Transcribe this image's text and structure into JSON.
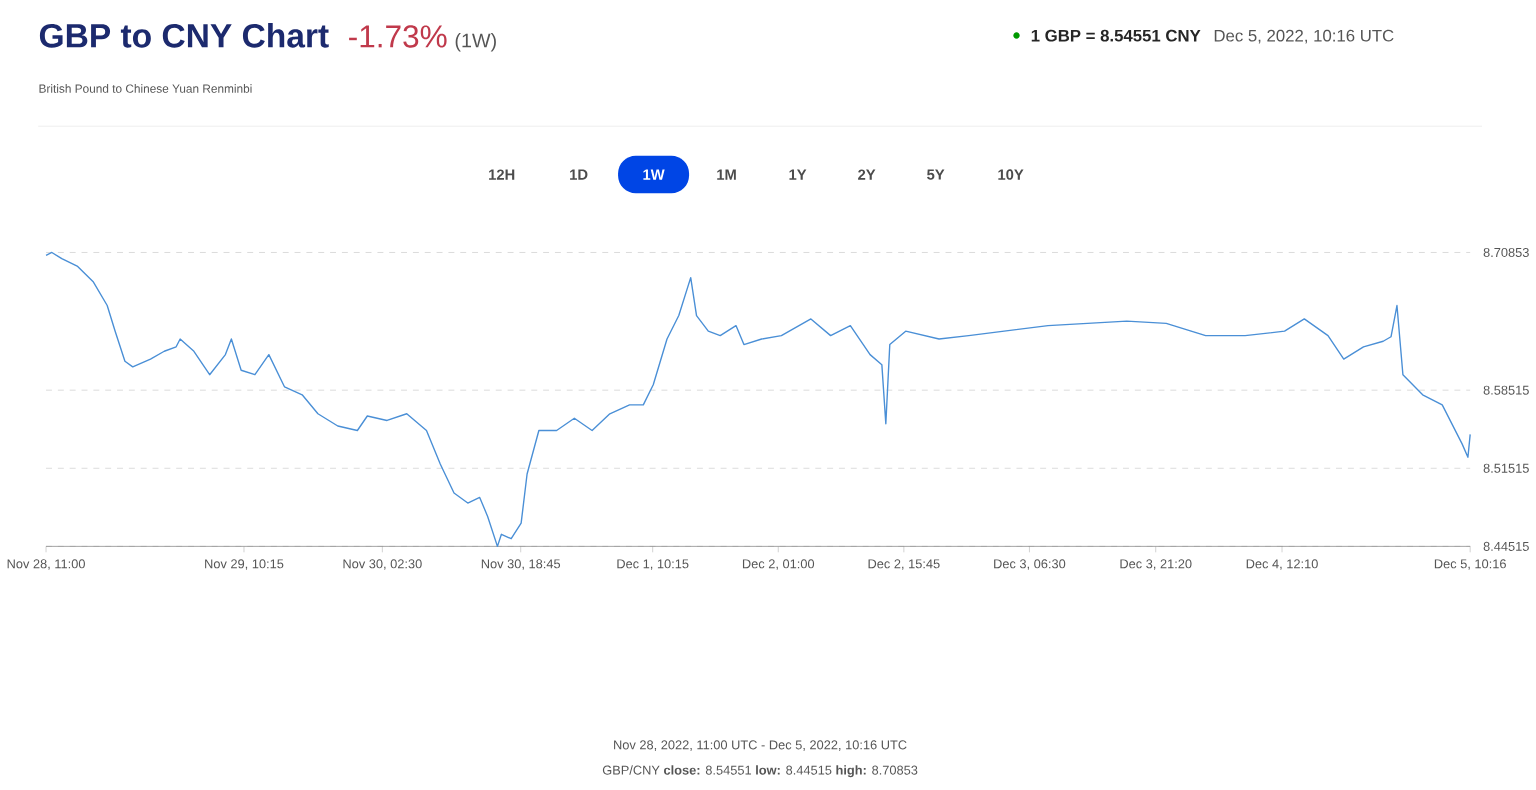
{
  "chart_data": {
    "type": "line",
    "title": "GBP to CNY Chart",
    "subtitle": "British Pound to Chinese Yuan Renminbi",
    "annotations": [
      "-1.73%",
      "(1W)",
      "1 GBP = 8.54551 CNY",
      "Dec 5, 2022, 10:16 UTC",
      "12H",
      "1D",
      "1W",
      "1M",
      "1Y",
      "2Y",
      "5Y",
      "10Y",
      "Nov 28, 2022, 11:00 UTC - Dec 5, 2022, 10:16 UTC",
      "GBP/CNY **close:** 8.54551 **low:** 8.44515 **high:** 8.70853"
    ],
    "x": [
      "2022-11-28T11:00",
      "2022-11-28T11:41",
      "2022-11-28T12:51",
      "2022-11-28T14:43",
      "2022-11-28T16:34",
      "2022-11-28T18:11",
      "2022-11-28T19:07",
      "2022-11-28T20:16",
      "2022-11-28T21:11",
      "2022-11-28T23:16",
      "2022-11-29T00:53",
      "2022-11-29T02:17",
      "2022-11-29T02:45",
      "2022-11-29T04:22",
      "2022-11-29T06:13",
      "2022-11-29T08:04",
      "2022-11-29T08:46",
      "2022-11-29T09:55",
      "2022-11-29T11:32",
      "2022-11-29T13:10",
      "2022-11-29T15:01",
      "2022-11-29T17:05",
      "2022-11-29T18:56",
      "2022-11-29T21:16",
      "2022-11-29T23:34",
      "2022-11-30T00:44",
      "2022-11-30T03:03",
      "2022-11-30T05:22",
      "2022-11-30T07:41",
      "2022-11-30T09:18",
      "2022-11-30T10:55",
      "2022-11-30T12:32",
      "2022-11-30T13:56",
      "2022-11-30T14:52",
      "2022-11-30T16:01",
      "2022-11-30T16:29",
      "2022-11-30T17:38",
      "2022-11-30T18:48",
      "2022-11-30T19:30",
      "2022-11-30T20:53",
      "2022-11-30T22:58",
      "2022-12-01T01:03",
      "2022-12-01T03:08",
      "2022-12-01T05:13",
      "2022-12-01T07:32",
      "2022-12-01T09:09",
      "2022-12-01T10:19",
      "2022-12-01T11:56",
      "2022-12-01T13:19",
      "2022-12-01T14:43",
      "2022-12-01T15:24",
      "2022-12-01T16:47",
      "2022-12-01T18:11",
      "2022-12-01T20:02",
      "2022-12-01T20:58",
      "2022-12-01T23:03",
      "2022-12-02T01:22",
      "2022-12-02T04:50",
      "2022-12-02T07:09",
      "2022-12-02T09:28",
      "2022-12-02T11:47",
      "2022-12-02T13:10",
      "2022-12-02T13:38",
      "2022-12-02T14:06",
      "2022-12-02T15:58",
      "2022-12-02T19:53",
      "2022-12-02T23:22",
      "2022-12-03T03:32",
      "2022-12-03T08:41",
      "2022-12-03T13:19",
      "2022-12-03T17:56",
      "2022-12-03T22:34",
      "2022-12-04T03:12",
      "2022-12-04T07:50",
      "2022-12-04T12:28",
      "2022-12-04T14:47",
      "2022-12-04T17:34",
      "2022-12-04T19:25",
      "2022-12-04T21:44",
      "2022-12-05T00:03",
      "2022-12-05T00:58",
      "2022-12-05T01:40",
      "2022-12-05T02:22",
      "2022-12-05T04:41",
      "2022-12-05T06:59",
      "2022-12-05T09:19",
      "2022-12-05T10:00",
      "2022-12-05T10:16"
    ],
    "series": [
      {
        "color": "#4a8fd6",
        "values": [
          8.706,
          8.70853,
          8.703,
          8.696,
          8.682,
          8.661,
          8.638,
          8.611,
          8.606,
          8.613,
          8.62,
          8.624,
          8.631,
          8.62,
          8.599,
          8.617,
          8.631,
          8.603,
          8.599,
          8.617,
          8.588,
          8.581,
          8.564,
          8.553,
          8.549,
          8.562,
          8.558,
          8.564,
          8.549,
          8.519,
          8.493,
          8.484,
          8.489,
          8.472,
          8.44515,
          8.456,
          8.452,
          8.466,
          8.51,
          8.549,
          8.549,
          8.56,
          8.549,
          8.564,
          8.572,
          8.572,
          8.59,
          8.631,
          8.652,
          8.686,
          8.652,
          8.638,
          8.634,
          8.643,
          8.626,
          8.631,
          8.634,
          8.649,
          8.634,
          8.643,
          8.617,
          8.608,
          8.555,
          8.626,
          8.638,
          8.631,
          8.634,
          8.638,
          8.643,
          8.645,
          8.647,
          8.645,
          8.634,
          8.634,
          8.638,
          8.649,
          8.634,
          8.613,
          8.624,
          8.629,
          8.633,
          8.661,
          8.599,
          8.581,
          8.572,
          8.537,
          8.525,
          8.54551
        ]
      }
    ],
    "xlim": [
      "2022-11-28T11:00",
      "2022-12-05T10:16"
    ],
    "xticks": [
      {
        "value": "2022-11-28T11:00",
        "label": "Nov 28, 11:00"
      },
      {
        "value": "2022-11-29T10:15",
        "label": "Nov 29, 10:15"
      },
      {
        "value": "2022-11-30T02:30",
        "label": "Nov 30, 02:30"
      },
      {
        "value": "2022-11-30T18:45",
        "label": "Nov 30, 18:45"
      },
      {
        "value": "2022-12-01T10:15",
        "label": "Dec 1, 10:15"
      },
      {
        "value": "2022-12-02T01:00",
        "label": "Dec 2, 01:00"
      },
      {
        "value": "2022-12-02T15:45",
        "label": "Dec 2, 15:45"
      },
      {
        "value": "2022-12-03T06:30",
        "label": "Dec 3, 06:30"
      },
      {
        "value": "2022-12-03T21:20",
        "label": "Dec 3, 21:20"
      },
      {
        "value": "2022-12-04T12:10",
        "label": "Dec 4, 12:10"
      },
      {
        "value": "2022-12-05T10:16",
        "label": "Dec 5, 10:16"
      }
    ],
    "ylim": [
      8.44515,
      8.70853
    ],
    "yticks": [
      8.44515,
      8.51515,
      8.58515,
      8.70853
    ],
    "grid": "y",
    "marker": "none",
    "line_style": "solid"
  }
}
